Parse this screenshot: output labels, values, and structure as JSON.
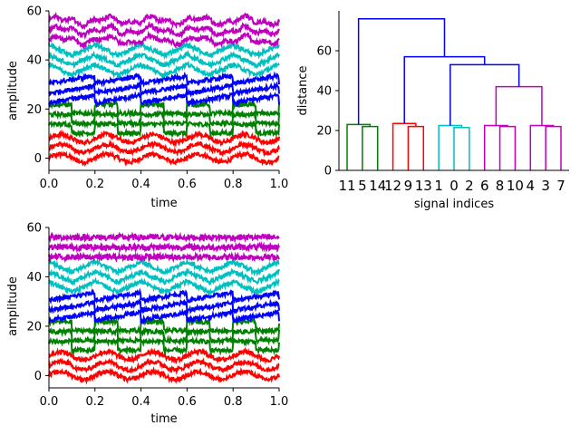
{
  "colors": {
    "red": "#ff0000",
    "green": "#008000",
    "blue": "#0000ff",
    "cyan": "#00bfbf",
    "magenta": "#bf00bf",
    "axis": "#000000"
  },
  "chart_data": [
    {
      "type": "line",
      "title": "",
      "xlabel": "time",
      "ylabel": "amplitude",
      "xlim": [
        0.0,
        1.0
      ],
      "ylim": [
        -5,
        60
      ],
      "xticks": [
        "0.0",
        "0.2",
        "0.4",
        "0.6",
        "0.8",
        "1.0"
      ],
      "yticks": [
        "0",
        "20",
        "40",
        "60"
      ],
      "series": [
        {
          "color": "red",
          "offset": 0,
          "pattern": "sine"
        },
        {
          "color": "red",
          "offset": 4,
          "pattern": "sine"
        },
        {
          "color": "red",
          "offset": 8,
          "pattern": "sine"
        },
        {
          "color": "green",
          "offset": 12,
          "pattern": "square"
        },
        {
          "color": "green",
          "offset": 16,
          "pattern": "square"
        },
        {
          "color": "green",
          "offset": 20,
          "pattern": "square"
        },
        {
          "color": "blue",
          "offset": 24,
          "pattern": "saw"
        },
        {
          "color": "blue",
          "offset": 28,
          "pattern": "saw"
        },
        {
          "color": "blue",
          "offset": 32,
          "pattern": "saw"
        },
        {
          "color": "cyan",
          "offset": 36,
          "pattern": "tri"
        },
        {
          "color": "cyan",
          "offset": 40,
          "pattern": "tri"
        },
        {
          "color": "cyan",
          "offset": 44,
          "pattern": "tri"
        },
        {
          "color": "magenta",
          "offset": 48,
          "pattern": "mix"
        },
        {
          "color": "magenta",
          "offset": 52,
          "pattern": "mix"
        },
        {
          "color": "magenta",
          "offset": 56,
          "pattern": "mix"
        }
      ]
    },
    {
      "type": "dendrogram",
      "title": "",
      "xlabel": "signal indices",
      "ylabel": "distance",
      "ylim": [
        0,
        80
      ],
      "yticks": [
        "0",
        "20",
        "40",
        "60"
      ],
      "leaves": [
        "11",
        "5",
        "14",
        "12",
        "9",
        "13",
        "1",
        "0",
        "2",
        "6",
        "8",
        "10",
        "4",
        "3",
        "7"
      ],
      "links": [
        {
          "a": "11",
          "b": "5-14",
          "height": 23,
          "color": "green"
        },
        {
          "a": "5",
          "b": "14",
          "height": 22,
          "color": "green"
        },
        {
          "a": "12",
          "b": "9-13",
          "height": 23.5,
          "color": "red"
        },
        {
          "a": "9",
          "b": "13",
          "height": 22,
          "color": "red"
        },
        {
          "a": "1",
          "b": "0-2",
          "height": 22.5,
          "color": "cyan"
        },
        {
          "a": "0",
          "b": "2",
          "height": 21.5,
          "color": "cyan"
        },
        {
          "a": "6",
          "b": "8-10",
          "height": 22.5,
          "color": "magenta"
        },
        {
          "a": "8",
          "b": "10",
          "height": 22,
          "color": "magenta"
        },
        {
          "a": "4",
          "b": "3-7",
          "height": 22.5,
          "color": "magenta"
        },
        {
          "a": "3",
          "b": "7",
          "height": 22,
          "color": "magenta"
        },
        {
          "a": "6-8-10",
          "b": "4-3-7",
          "height": 42,
          "color": "magenta"
        },
        {
          "a": "cyan-group",
          "b": "magenta-group",
          "height": 53,
          "color": "blue"
        },
        {
          "a": "red-group",
          "b": "cyan-magenta",
          "height": 57,
          "color": "blue"
        },
        {
          "a": "green-group",
          "b": "rest",
          "height": 76,
          "color": "blue"
        }
      ]
    },
    {
      "type": "line",
      "title": "",
      "xlabel": "time",
      "ylabel": "amplitude",
      "xlim": [
        0.0,
        1.0
      ],
      "ylim": [
        -5,
        60
      ],
      "xticks": [
        "0.0",
        "0.2",
        "0.4",
        "0.6",
        "0.8",
        "1.0"
      ],
      "yticks": [
        "0",
        "20",
        "40",
        "60"
      ],
      "series": [
        {
          "color": "red",
          "offset": 0,
          "pattern": "sine"
        },
        {
          "color": "red",
          "offset": 4,
          "pattern": "sine"
        },
        {
          "color": "red",
          "offset": 8,
          "pattern": "sine"
        },
        {
          "color": "green",
          "offset": 12,
          "pattern": "square"
        },
        {
          "color": "green",
          "offset": 16,
          "pattern": "square"
        },
        {
          "color": "green",
          "offset": 20,
          "pattern": "square"
        },
        {
          "color": "blue",
          "offset": 24,
          "pattern": "saw"
        },
        {
          "color": "blue",
          "offset": 28,
          "pattern": "saw"
        },
        {
          "color": "blue",
          "offset": 32,
          "pattern": "saw"
        },
        {
          "color": "cyan",
          "offset": 36,
          "pattern": "tri"
        },
        {
          "color": "cyan",
          "offset": 40,
          "pattern": "tri"
        },
        {
          "color": "cyan",
          "offset": 44,
          "pattern": "tri"
        },
        {
          "color": "magenta",
          "offset": 48,
          "pattern": "flat"
        },
        {
          "color": "magenta",
          "offset": 52,
          "pattern": "flat"
        },
        {
          "color": "magenta",
          "offset": 56,
          "pattern": "flat"
        }
      ]
    }
  ]
}
